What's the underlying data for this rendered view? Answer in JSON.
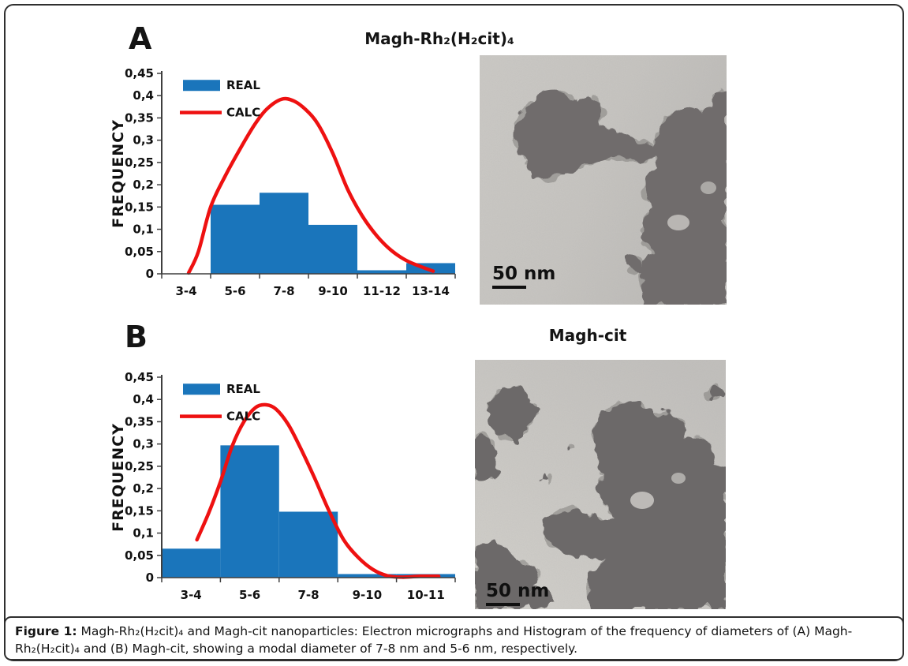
{
  "figure": {
    "panels": [
      {
        "label": "A",
        "title": "Magh-Rh₂(H₂cit)₄",
        "micrograph": {
          "scale_label": "50 nm"
        }
      },
      {
        "label": "B",
        "title": "Magh-cit",
        "micrograph": {
          "scale_label": "50 nm"
        }
      }
    ],
    "caption": {
      "prefix": "Figure 1:",
      "body": " Magh-Rh₂(H₂cit)₄ and  Magh-cit nanoparticles: Electron micrographs and Histogram of the frequency of diameters of (A) Magh-Rh₂(H₂cit)₄ and  (B) Magh-cit, showing a  modal diameter of 7-8 nm and 5-6 nm, respectively."
    }
  },
  "chart_data": [
    {
      "type": "bar",
      "title": "Magh-Rh₂(H₂cit)₄",
      "xlabel": "",
      "ylabel": "FREQUENCY",
      "categories": [
        "3-4",
        "5-6",
        "7-8",
        "9-10",
        "11-12",
        "13-14"
      ],
      "series": [
        {
          "name": "REAL",
          "type": "bar",
          "values": [
            0,
            0.155,
            0.182,
            0.11,
            0.008,
            0.024
          ]
        },
        {
          "name": "CALC",
          "type": "line",
          "points": [
            [
              0.55,
              0.002
            ],
            [
              0.75,
              0.05
            ],
            [
              1.0,
              0.15
            ],
            [
              1.3,
              0.22
            ],
            [
              1.6,
              0.28
            ],
            [
              1.9,
              0.335
            ],
            [
              2.15,
              0.37
            ],
            [
              2.45,
              0.392
            ],
            [
              2.7,
              0.388
            ],
            [
              2.95,
              0.368
            ],
            [
              3.2,
              0.335
            ],
            [
              3.5,
              0.27
            ],
            [
              3.8,
              0.19
            ],
            [
              4.1,
              0.13
            ],
            [
              4.4,
              0.085
            ],
            [
              4.7,
              0.052
            ],
            [
              5.0,
              0.03
            ],
            [
              5.3,
              0.016
            ],
            [
              5.55,
              0.006
            ]
          ]
        }
      ],
      "ylim": [
        0,
        0.45
      ],
      "ytick_labels": [
        "0",
        "0,05",
        "0,1",
        "0,15",
        "0,2",
        "0,25",
        "0,3",
        "0,35",
        "0,4",
        "0,45"
      ],
      "legend_position": "top-left",
      "grid": false,
      "colors": {
        "bar": "#1a75bb",
        "line": "#ee1111"
      }
    },
    {
      "type": "bar",
      "title": "Magh-cit",
      "xlabel": "",
      "ylabel": "FREQUENCY",
      "categories": [
        "3-4",
        "5-6",
        "7-8",
        "9-10",
        "10-11"
      ],
      "series": [
        {
          "name": "REAL",
          "type": "bar",
          "values": [
            0.065,
            0.297,
            0.148,
            0.008,
            0.008
          ]
        },
        {
          "name": "CALC",
          "type": "line",
          "points": [
            [
              0.6,
              0.085
            ],
            [
              0.8,
              0.145
            ],
            [
              1.0,
              0.215
            ],
            [
              1.2,
              0.295
            ],
            [
              1.4,
              0.35
            ],
            [
              1.6,
              0.382
            ],
            [
              1.78,
              0.388
            ],
            [
              1.95,
              0.378
            ],
            [
              2.15,
              0.345
            ],
            [
              2.35,
              0.295
            ],
            [
              2.6,
              0.225
            ],
            [
              2.85,
              0.15
            ],
            [
              3.1,
              0.085
            ],
            [
              3.35,
              0.045
            ],
            [
              3.6,
              0.018
            ],
            [
              3.85,
              0.004
            ],
            [
              4.1,
              0.001
            ],
            [
              4.4,
              0.003
            ],
            [
              4.72,
              0.003
            ]
          ]
        }
      ],
      "ylim": [
        0,
        0.45
      ],
      "ytick_labels": [
        "0",
        "0,05",
        "0,1",
        "0,15",
        "0,2",
        "0,25",
        "0,3",
        "0,35",
        "0,4",
        "0,45"
      ],
      "legend_position": "top-left",
      "grid": false,
      "colors": {
        "bar": "#1a75bb",
        "line": "#ee1111"
      }
    }
  ]
}
